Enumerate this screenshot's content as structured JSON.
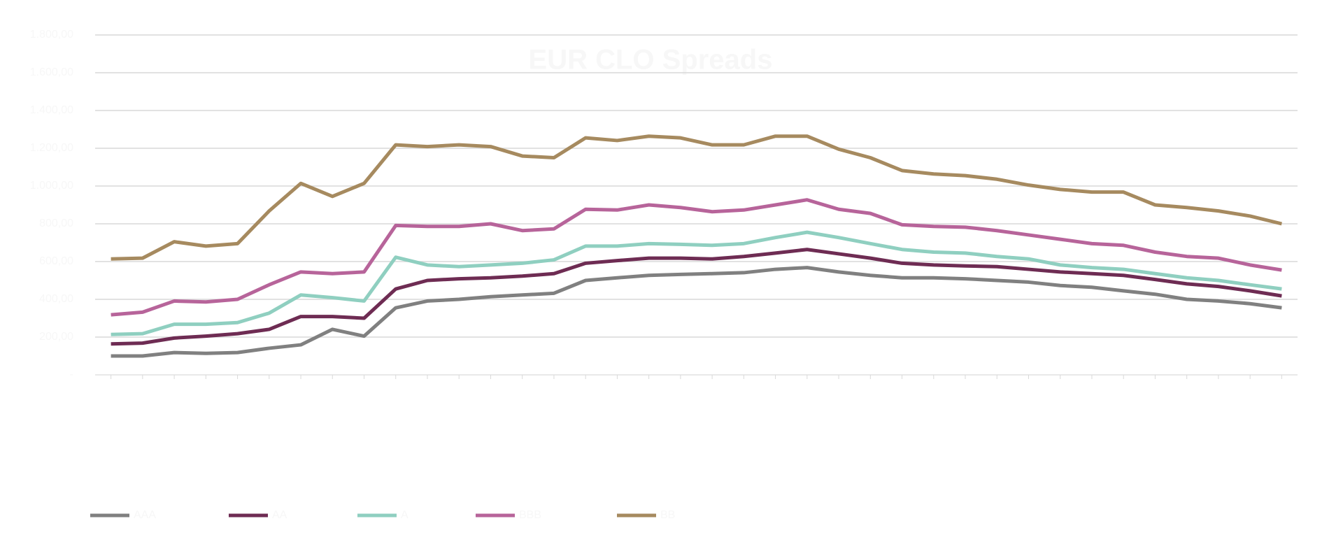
{
  "chart_data": {
    "type": "line",
    "title": "EUR CLO Spreads",
    "categories": [
      null,
      null,
      null,
      null,
      null,
      null,
      null,
      null,
      null,
      null,
      null,
      null,
      null,
      null,
      null,
      null,
      null,
      null,
      null,
      null,
      null,
      null,
      null,
      null,
      null,
      null,
      null,
      null,
      null,
      null,
      null,
      null,
      null,
      null,
      null,
      null,
      null,
      null
    ],
    "series": [
      {
        "name": "AAA",
        "color": "#808080",
        "values": [
          100,
          100,
          118,
          114,
          118,
          141,
          159,
          241,
          205,
          355,
          391,
          400,
          414,
          423,
          432,
          500,
          514,
          527,
          532,
          536,
          541,
          559,
          568,
          545,
          527,
          514,
          514,
          509,
          500,
          491,
          473,
          464,
          445,
          427,
          400,
          391,
          377,
          355
        ]
      },
      {
        "name": "AA",
        "color": "#6e2c53",
        "values": [
          164,
          168,
          195,
          205,
          218,
          241,
          309,
          309,
          300,
          455,
          500,
          509,
          514,
          523,
          536,
          591,
          605,
          618,
          618,
          614,
          627,
          645,
          664,
          641,
          618,
          591,
          582,
          577,
          573,
          559,
          545,
          536,
          527,
          505,
          482,
          468,
          445,
          418
        ]
      },
      {
        "name": "A",
        "color": "#8fcfc0",
        "values": [
          214,
          218,
          268,
          268,
          277,
          327,
          423,
          409,
          391,
          623,
          582,
          573,
          582,
          591,
          609,
          682,
          682,
          695,
          691,
          686,
          695,
          727,
          755,
          727,
          695,
          664,
          650,
          645,
          627,
          614,
          582,
          568,
          559,
          536,
          514,
          500,
          477,
          455
        ]
      },
      {
        "name": "BBB",
        "color": "#b7649a",
        "values": [
          318,
          332,
          391,
          386,
          400,
          477,
          545,
          536,
          545,
          791,
          786,
          786,
          800,
          764,
          773,
          877,
          873,
          900,
          886,
          864,
          873,
          900,
          927,
          877,
          855,
          795,
          786,
          782,
          764,
          741,
          718,
          695,
          686,
          650,
          627,
          618,
          582,
          555
        ]
      },
      {
        "name": "BB",
        "color": "#a68a5f",
        "values": [
          614,
          618,
          705,
          682,
          695,
          868,
          1014,
          945,
          1014,
          1218,
          1209,
          1218,
          1209,
          1159,
          1150,
          1255,
          1241,
          1264,
          1255,
          1218,
          1218,
          1264,
          1264,
          1195,
          1150,
          1082,
          1064,
          1055,
          1036,
          1005,
          982,
          968,
          968,
          900,
          886,
          868,
          841,
          800
        ]
      }
    ],
    "ylim": [
      0,
      1800
    ],
    "yticks": [
      {
        "value": 0,
        "label": "-"
      },
      {
        "value": 200,
        "label": "200,00"
      },
      {
        "value": 400,
        "label": "400,00"
      },
      {
        "value": 600,
        "label": "600,00"
      },
      {
        "value": 800,
        "label": "800,00"
      },
      {
        "value": 1000,
        "label": "1.000,00"
      },
      {
        "value": 1200,
        "label": "1.200,00"
      },
      {
        "value": 1400,
        "label": "1.400,00"
      },
      {
        "value": 1600,
        "label": "1.600,00"
      },
      {
        "value": 1800,
        "label": "1.800,00"
      }
    ],
    "grid": true,
    "legend": "bottom"
  }
}
